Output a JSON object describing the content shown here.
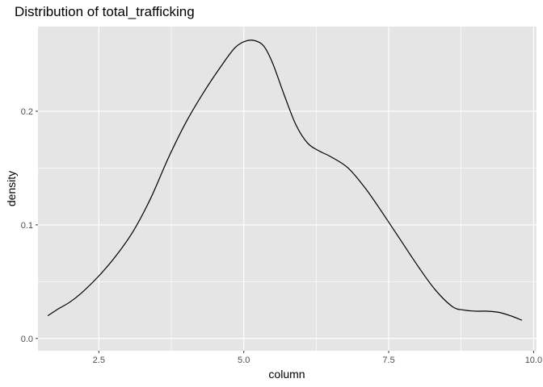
{
  "chart_data": {
    "type": "line",
    "title": "Distribution of total_trafficking",
    "xlabel": "column",
    "ylabel": "density",
    "xlim": [
      1.45,
      10.05
    ],
    "ylim": [
      -0.0108,
      0.2745
    ],
    "x_ticks": [
      2.5,
      5.0,
      7.5,
      10.0
    ],
    "x_tick_labels": [
      "2.5",
      "5.0",
      "7.5",
      "10.0"
    ],
    "y_ticks": [
      0.0,
      0.1,
      0.2
    ],
    "y_tick_labels": [
      "0.0",
      "0.1",
      "0.2"
    ],
    "grid": true,
    "legend": "none",
    "colors": {
      "panel": "#e5e5e5",
      "grid": "#ffffff",
      "line": "#000000"
    },
    "series": [
      {
        "x": [
          1.62,
          1.8,
          2.0,
          2.2,
          2.5,
          2.8,
          3.1,
          3.4,
          3.7,
          4.0,
          4.3,
          4.6,
          4.85,
          5.05,
          5.2,
          5.35,
          5.5,
          5.7,
          5.9,
          6.1,
          6.3,
          6.5,
          6.8,
          7.1,
          7.4,
          7.7,
          8.0,
          8.3,
          8.6,
          8.8,
          9.0,
          9.2,
          9.4,
          9.6,
          9.8
        ],
        "y": [
          0.02,
          0.026,
          0.032,
          0.04,
          0.055,
          0.073,
          0.095,
          0.124,
          0.159,
          0.19,
          0.216,
          0.239,
          0.256,
          0.262,
          0.262,
          0.257,
          0.242,
          0.214,
          0.188,
          0.172,
          0.165,
          0.16,
          0.15,
          0.132,
          0.11,
          0.087,
          0.064,
          0.043,
          0.028,
          0.025,
          0.024,
          0.024,
          0.023,
          0.02,
          0.016
        ]
      }
    ]
  }
}
